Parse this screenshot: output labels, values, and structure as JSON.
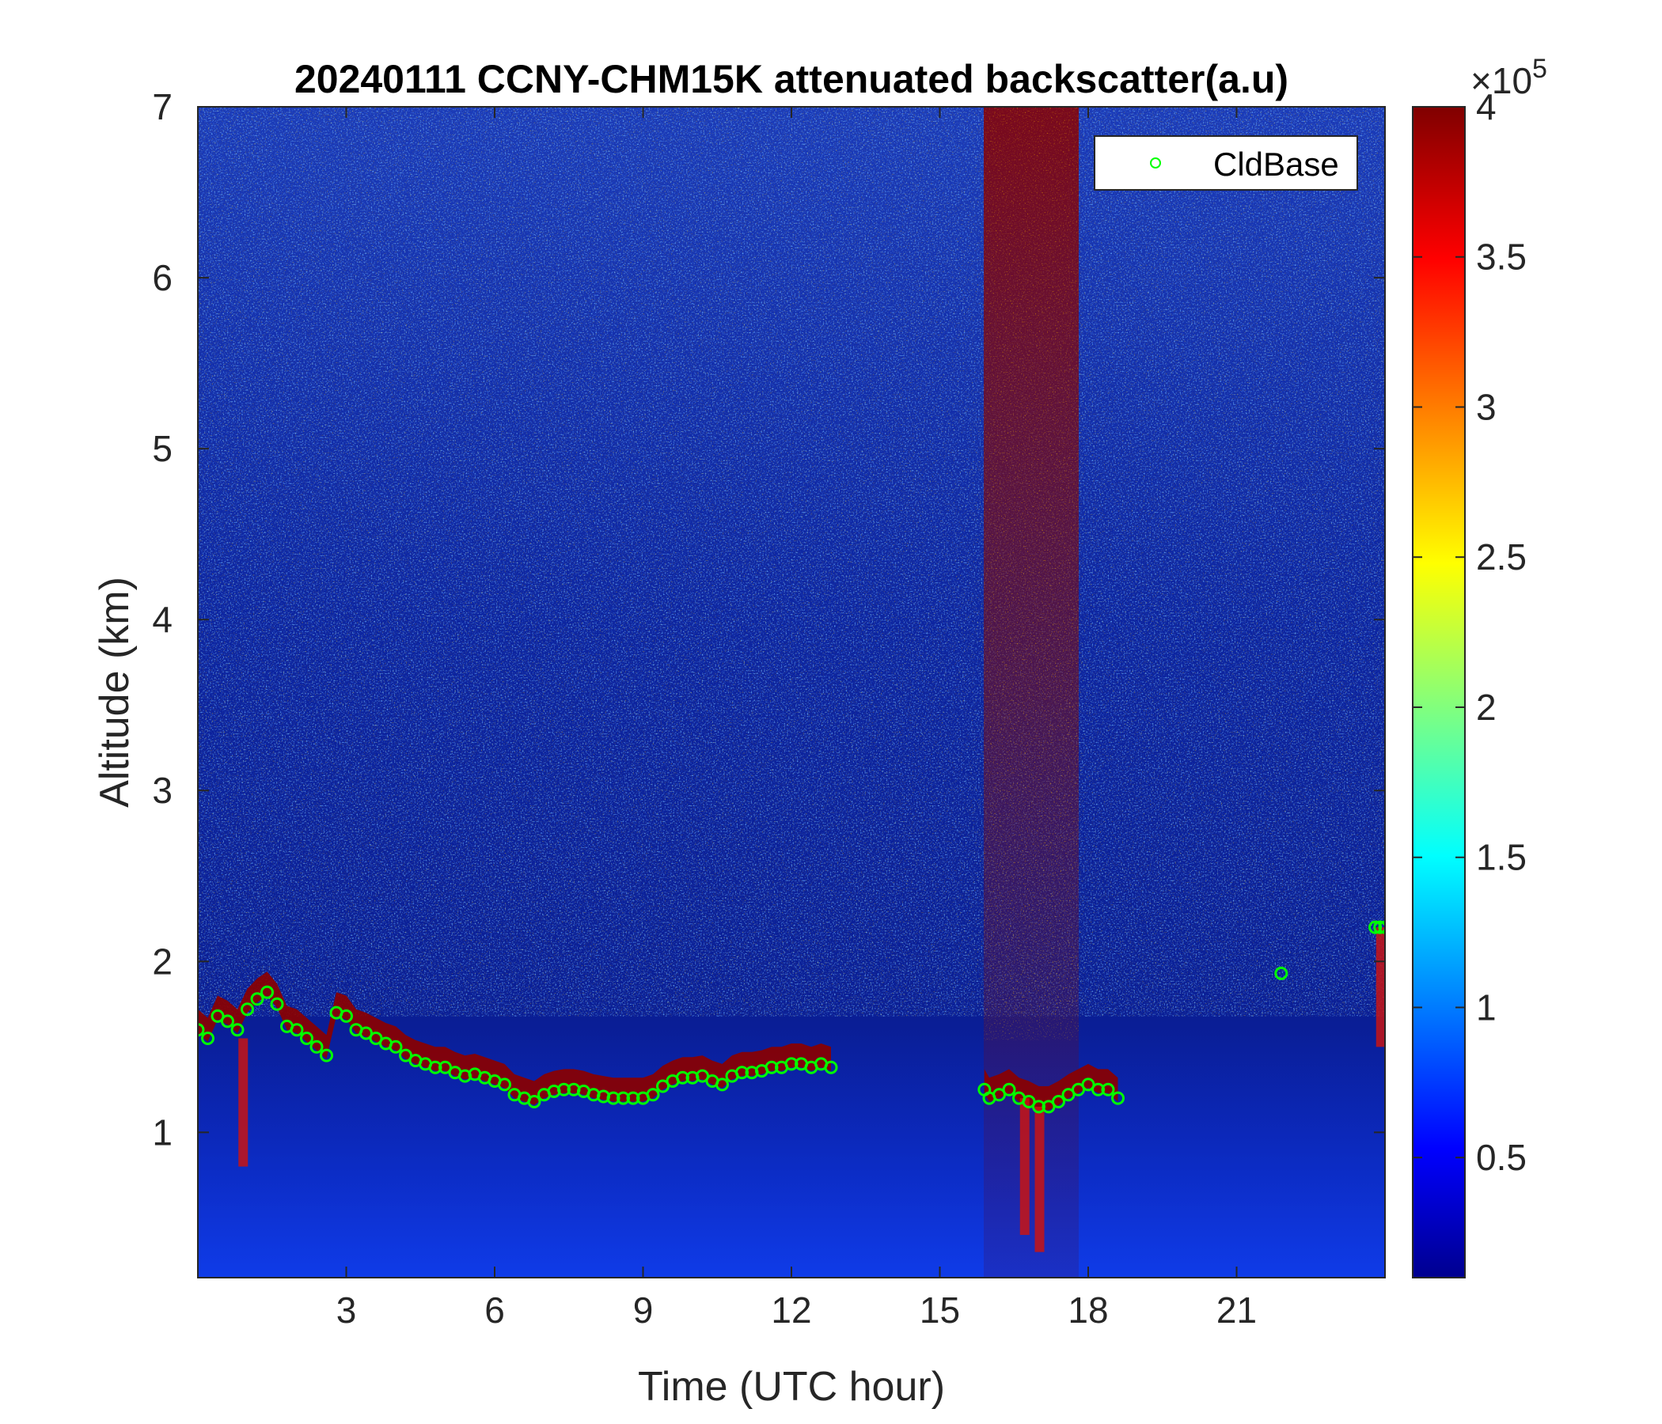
{
  "chart_data": {
    "type": "heatmap",
    "title": "20240111 CCNY-CHM15K attenuated backscatter(a.u)",
    "xlabel": "Time (UTC hour)",
    "ylabel": "Altitude (km)",
    "xlim": [
      0,
      24
    ],
    "ylim": [
      0.15,
      7
    ],
    "xticks": [
      3,
      6,
      9,
      12,
      15,
      18,
      21
    ],
    "xtick_labels": [
      "3",
      "6",
      "9",
      "12",
      "15",
      "18",
      "21"
    ],
    "yticks": [
      1,
      2,
      3,
      4,
      5,
      6,
      7
    ],
    "ytick_labels": [
      "1",
      "2",
      "3",
      "4",
      "5",
      "6",
      "7"
    ],
    "colormap": "jet",
    "colorbar": {
      "range": [
        10000,
        400000
      ],
      "ticks": [
        0.5,
        1,
        1.5,
        2,
        2.5,
        3,
        3.5,
        4
      ],
      "tick_labels": [
        "0.5",
        "1",
        "1.5",
        "2",
        "2.5",
        "3",
        "3.5",
        "4"
      ],
      "exponent_base": "×10",
      "exponent_power": "5"
    },
    "legend": {
      "entries": [
        "CldBase"
      ],
      "placement": "top-right",
      "marker_color": "#00ff00"
    },
    "series": [
      {
        "name": "CldBase",
        "type": "scatter",
        "x": [
          0.0,
          0.2,
          0.4,
          0.6,
          0.8,
          1.0,
          1.2,
          1.4,
          1.6,
          1.8,
          2.0,
          2.2,
          2.4,
          2.6,
          2.8,
          3.0,
          3.2,
          3.4,
          3.6,
          3.8,
          4.0,
          4.2,
          4.4,
          4.6,
          4.8,
          5.0,
          5.2,
          5.4,
          5.6,
          5.8,
          6.0,
          6.2,
          6.4,
          6.6,
          6.8,
          7.0,
          7.2,
          7.4,
          7.6,
          7.8,
          8.0,
          8.2,
          8.4,
          8.6,
          8.8,
          9.0,
          9.2,
          9.4,
          9.6,
          9.8,
          10.0,
          10.2,
          10.4,
          10.6,
          10.8,
          11.0,
          11.2,
          11.4,
          11.6,
          11.8,
          12.0,
          12.2,
          12.4,
          12.6,
          12.8,
          15.9,
          16.0,
          16.2,
          16.4,
          16.6,
          16.8,
          17.0,
          17.2,
          17.4,
          17.6,
          17.8,
          18.0,
          18.2,
          18.4,
          18.6,
          21.9,
          23.8,
          23.9,
          24.0
        ],
        "y": [
          1.6,
          1.55,
          1.68,
          1.65,
          1.6,
          1.72,
          1.78,
          1.82,
          1.75,
          1.62,
          1.6,
          1.55,
          1.5,
          1.45,
          1.7,
          1.68,
          1.6,
          1.58,
          1.55,
          1.52,
          1.5,
          1.45,
          1.42,
          1.4,
          1.38,
          1.38,
          1.35,
          1.33,
          1.34,
          1.32,
          1.3,
          1.28,
          1.22,
          1.2,
          1.18,
          1.22,
          1.24,
          1.25,
          1.25,
          1.24,
          1.22,
          1.21,
          1.2,
          1.2,
          1.2,
          1.2,
          1.22,
          1.27,
          1.3,
          1.32,
          1.32,
          1.33,
          1.3,
          1.28,
          1.33,
          1.35,
          1.35,
          1.36,
          1.38,
          1.38,
          1.4,
          1.4,
          1.38,
          1.4,
          1.38,
          1.25,
          1.2,
          1.22,
          1.25,
          1.2,
          1.18,
          1.15,
          1.15,
          1.18,
          1.22,
          1.25,
          1.28,
          1.25,
          1.25,
          1.2,
          1.93,
          2.2,
          2.2,
          2.2
        ]
      }
    ]
  }
}
